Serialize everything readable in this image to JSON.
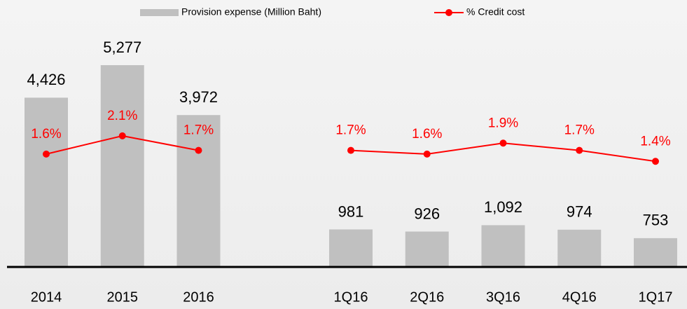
{
  "chart_data": {
    "type": "bar",
    "categories": [
      "2014",
      "2015",
      "2016",
      null,
      "1Q16",
      "2Q16",
      "3Q16",
      "4Q16",
      "1Q17"
    ],
    "series": [
      {
        "name": "Provision expense (Million Baht)",
        "color": "#c0c0c0",
        "values": [
          4426,
          5277,
          3972,
          null,
          981,
          926,
          1092,
          974,
          753
        ],
        "value_labels": [
          "4,426",
          "5,277",
          "3,972",
          null,
          "981",
          "926",
          "1,092",
          "974",
          "753"
        ]
      },
      {
        "name": "% Credit cost",
        "color": "#ff0000",
        "type": "line",
        "axis": "y2",
        "values": [
          1.6,
          2.1,
          1.7,
          null,
          1.7,
          1.6,
          1.9,
          1.7,
          1.4
        ],
        "value_labels": [
          "1.6%",
          "2.1%",
          "1.7%",
          null,
          "1.7%",
          "1.6%",
          "1.9%",
          "1.7%",
          "1.4%"
        ]
      }
    ],
    "ylim": [
      0,
      6000
    ],
    "y2lim": [
      -1.5,
      4.8
    ]
  }
}
